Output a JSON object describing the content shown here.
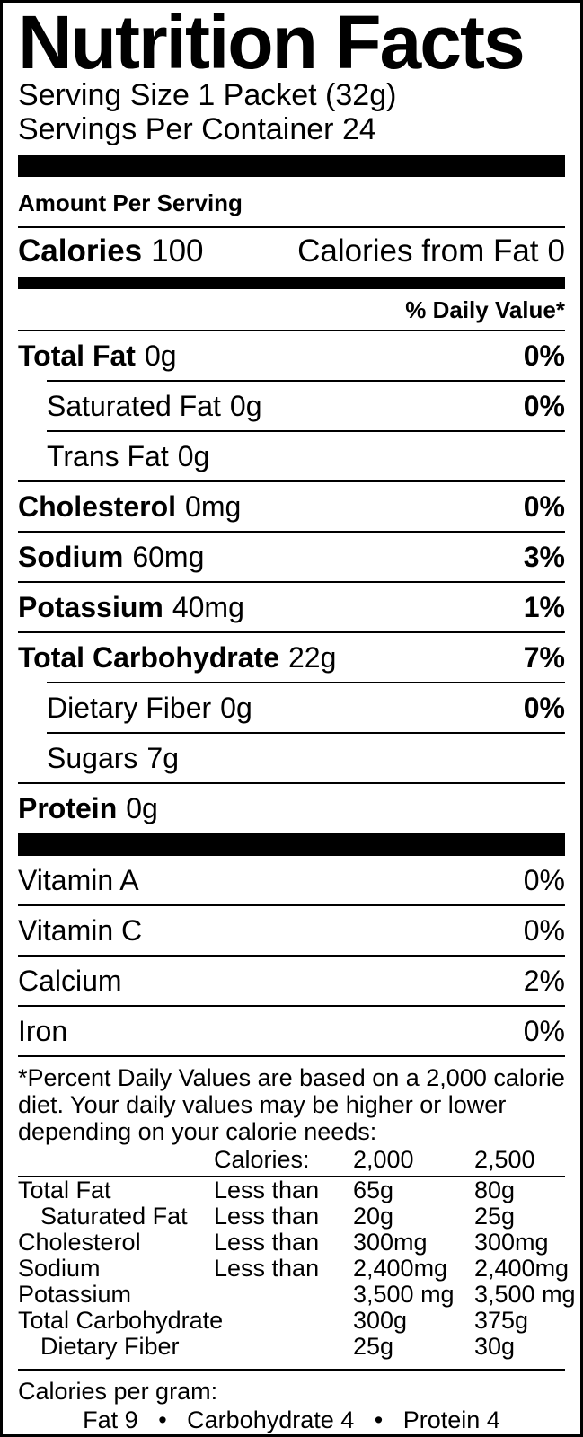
{
  "label": {
    "title": "Nutrition Facts",
    "serving_size": "Serving Size 1 Packet (32g)",
    "servings_per_container": "Servings Per Container 24",
    "amount_per_serving": "Amount Per Serving",
    "calories": {
      "label": "Calories",
      "value": "100"
    },
    "calories_from_fat": {
      "label": "Calories from Fat",
      "value": "0"
    },
    "daily_value_header": "% Daily Value*",
    "nutrients": [
      {
        "name": "Total Fat",
        "amount": "0g",
        "dv": "0%"
      },
      {
        "name": "Saturated Fat",
        "amount": "0g",
        "dv": "0%"
      },
      {
        "name": "Trans Fat",
        "amount": "0g",
        "dv": ""
      },
      {
        "name": "Cholesterol",
        "amount": "0mg",
        "dv": "0%"
      },
      {
        "name": "Sodium",
        "amount": "60mg",
        "dv": "3%"
      },
      {
        "name": "Potassium",
        "amount": "40mg",
        "dv": "1%"
      },
      {
        "name": "Total Carbohydrate",
        "amount": "22g",
        "dv": "7%"
      },
      {
        "name": "Dietary Fiber",
        "amount": "0g",
        "dv": "0%"
      },
      {
        "name": "Sugars",
        "amount": "7g",
        "dv": ""
      },
      {
        "name": "Protein",
        "amount": "0g",
        "dv": ""
      }
    ],
    "vitamins": [
      {
        "name": "Vitamin A",
        "dv": "0%"
      },
      {
        "name": "Vitamin C",
        "dv": "0%"
      },
      {
        "name": "Calcium",
        "dv": "2%"
      },
      {
        "name": "Iron",
        "dv": "0%"
      }
    ],
    "footnote_lines": [
      "*Percent Daily Values are based on a 2,000 calorie",
      "diet. Your daily values may be higher or lower",
      "depending on your calorie needs:"
    ],
    "dv_table": {
      "header": {
        "label": "Calories:",
        "col1": "2,000",
        "col2": "2,500"
      },
      "rows": [
        {
          "name": "Total Fat",
          "qualifier": "Less than",
          "col1": "65g",
          "col2": "80g"
        },
        {
          "name": "Saturated Fat",
          "qualifier": "Less than",
          "col1": "20g",
          "col2": "25g"
        },
        {
          "name": "Cholesterol",
          "qualifier": "Less than",
          "col1": "300mg",
          "col2": "300mg"
        },
        {
          "name": "Sodium",
          "qualifier": "Less than",
          "col1": "2,400mg",
          "col2": "2,400mg"
        },
        {
          "name": "Potassium",
          "qualifier": "",
          "col1": "3,500 mg",
          "col2": "3,500 mg"
        },
        {
          "name": "Total Carbohydrate",
          "qualifier": "",
          "col1": "300g",
          "col2": "375g"
        },
        {
          "name": "Dietary Fiber",
          "qualifier": "",
          "col1": "25g",
          "col2": "30g"
        }
      ]
    },
    "calories_per_gram": {
      "label": "Calories per gram:",
      "values": "Fat 9   •   Carbohydrate 4   •   Protein 4"
    },
    "colors": {
      "text": "#000000",
      "background": "#ffffff",
      "divider": "#000000"
    }
  }
}
